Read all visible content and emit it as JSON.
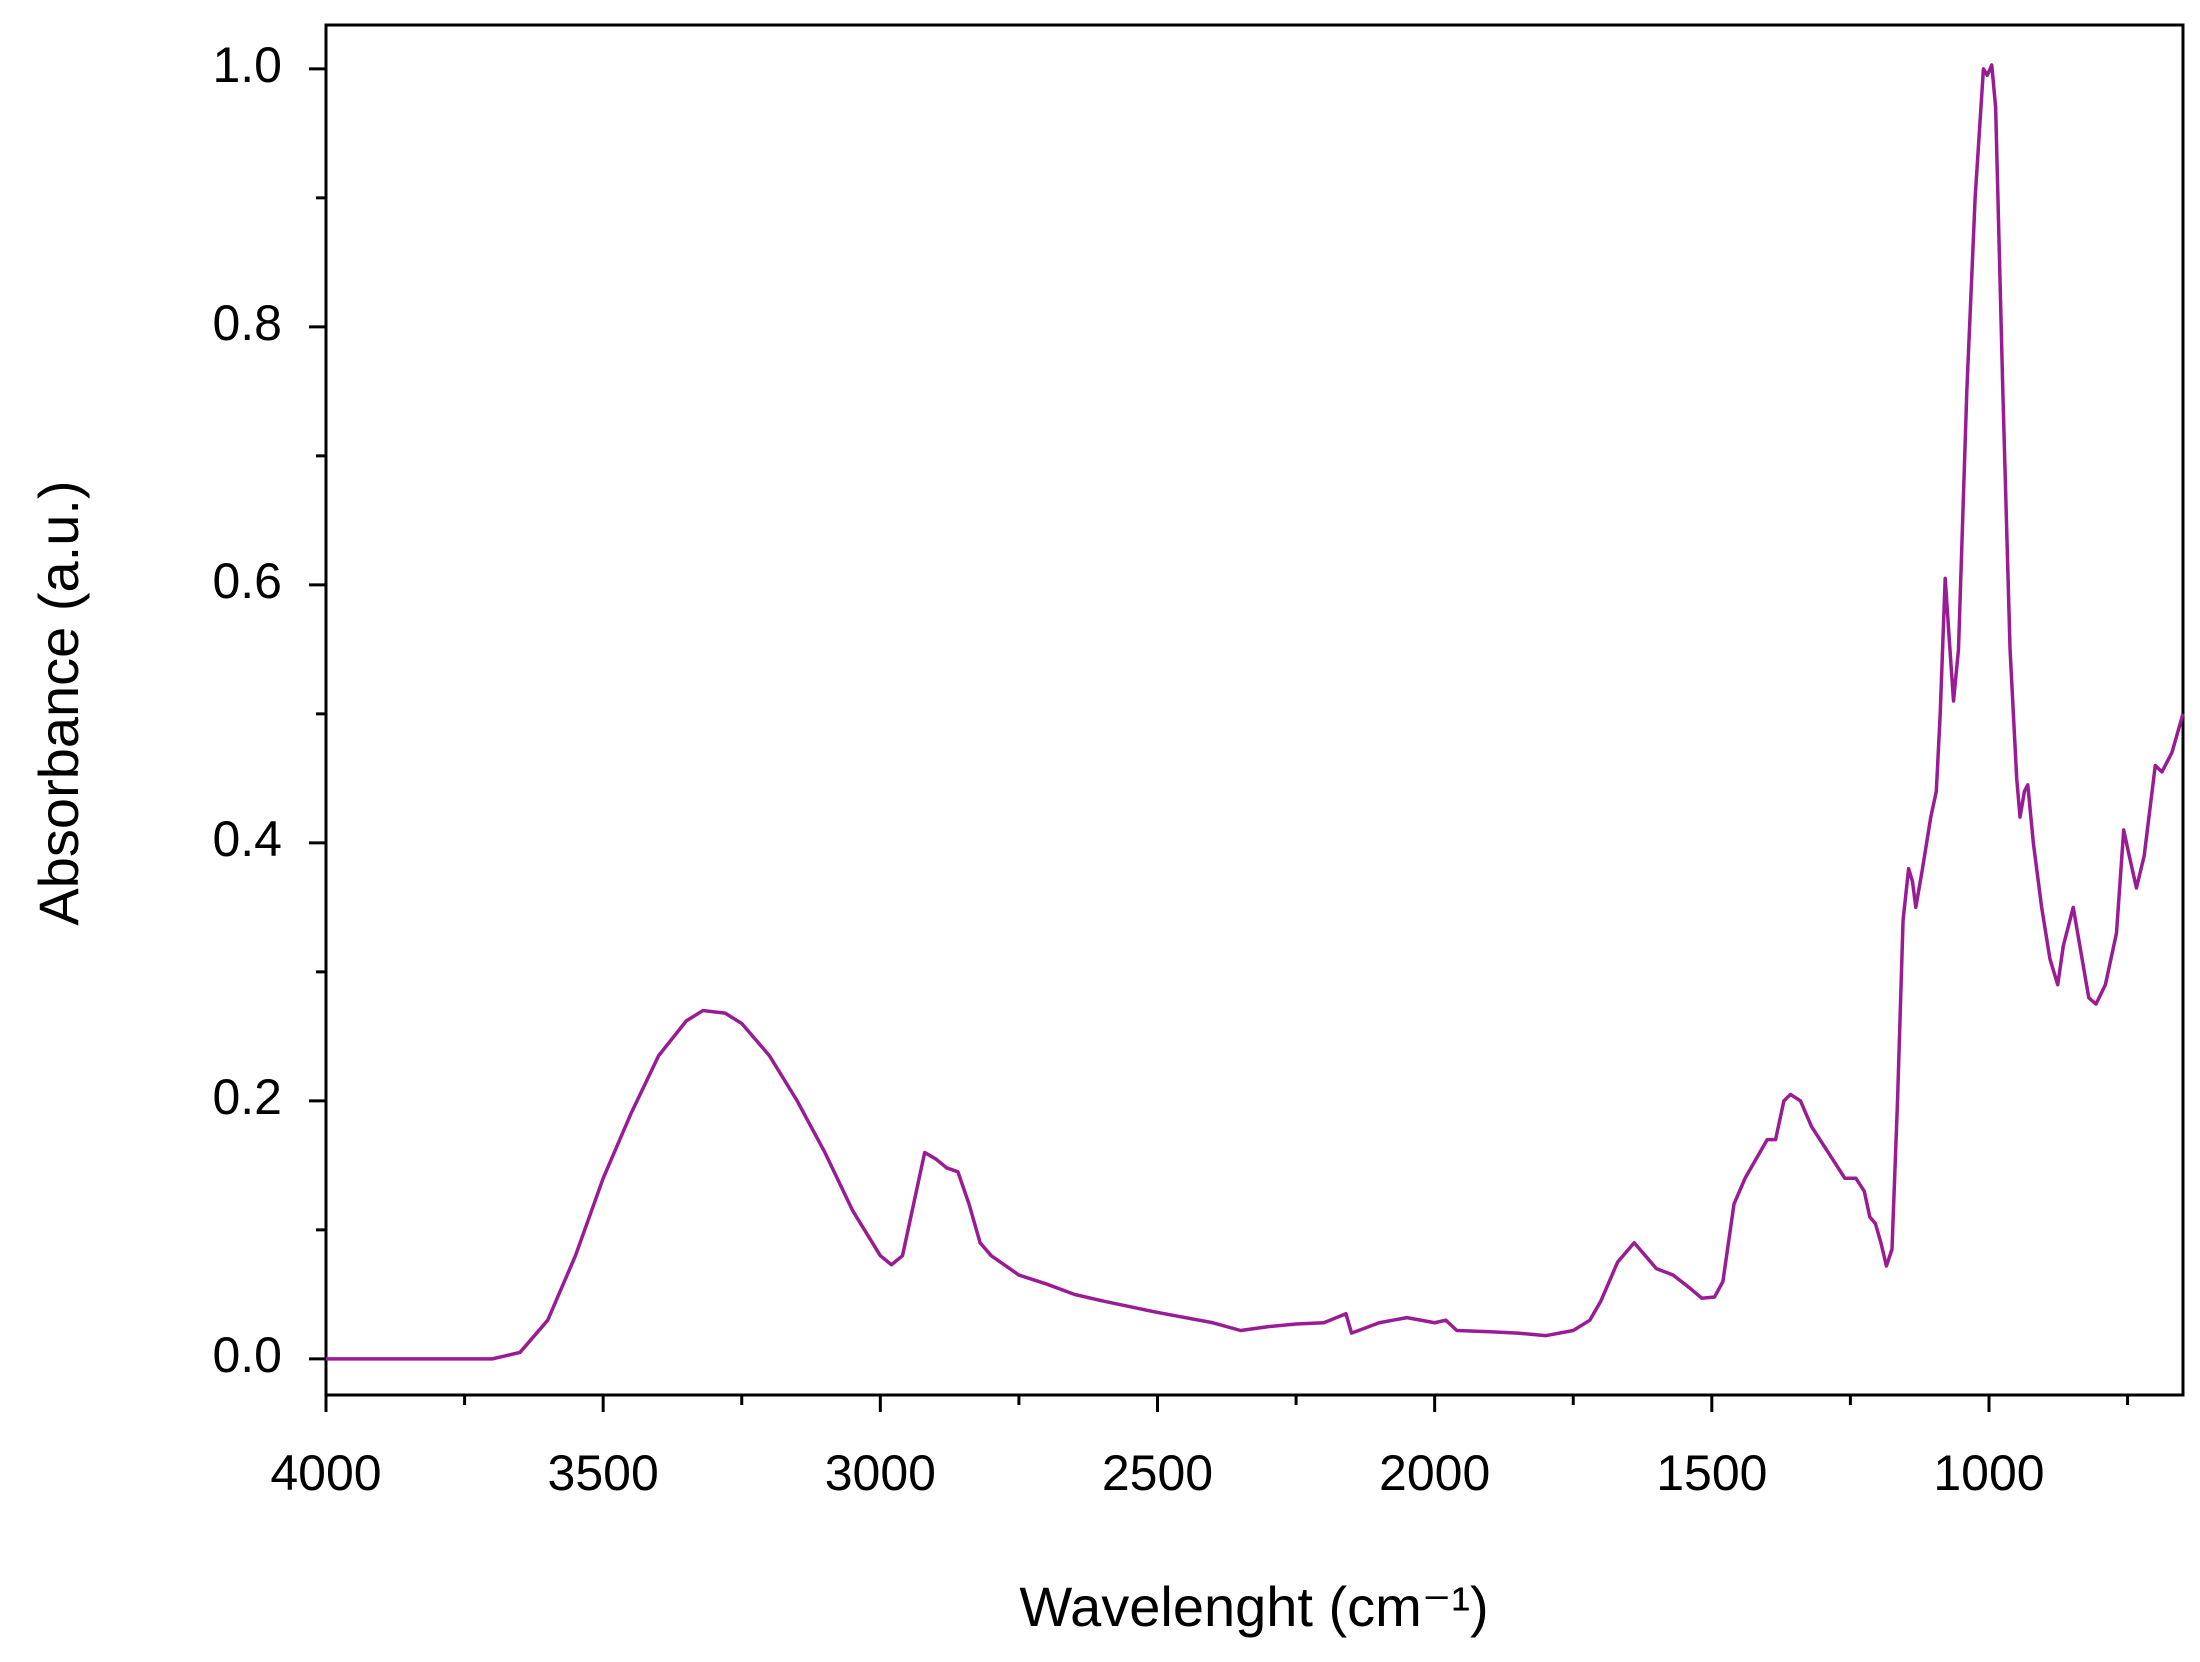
{
  "chart_data": {
    "type": "line",
    "x_label": "Wavelenght (cm⁻¹)",
    "y_label": "Absorbance (a.u.)",
    "color": "#9a1c94",
    "xlim": [
      4000,
      650
    ],
    "ylim": [
      -0.028,
      1.034
    ],
    "xticks": [
      4000,
      3500,
      3000,
      2500,
      2000,
      1500,
      1000
    ],
    "xminorticks": [
      3750,
      3250,
      2750,
      2250,
      1750,
      1250,
      750
    ],
    "yticks": [
      {
        "value": 0,
        "label": "0.0"
      },
      0.2,
      0.4,
      0.6,
      0.8,
      {
        "value": 1,
        "label": "1.0"
      }
    ],
    "yminorticks": [
      0.1,
      0.3,
      0.5,
      0.7,
      0.9
    ],
    "x": [
      4000,
      3800,
      3700,
      3650,
      3600,
      3550,
      3500,
      3450,
      3400,
      3350,
      3320,
      3280,
      3250,
      3200,
      3150,
      3100,
      3050,
      3000,
      2980,
      2960,
      2940,
      2920,
      2900,
      2880,
      2860,
      2840,
      2820,
      2800,
      2750,
      2700,
      2650,
      2600,
      2500,
      2400,
      2350,
      2300,
      2250,
      2200,
      2160,
      2150,
      2100,
      2050,
      2000,
      1980,
      1960,
      1900,
      1850,
      1800,
      1750,
      1720,
      1700,
      1670,
      1640,
      1620,
      1600,
      1570,
      1540,
      1518,
      1495,
      1480,
      1460,
      1440,
      1420,
      1400,
      1385,
      1370,
      1358,
      1340,
      1320,
      1290,
      1260,
      1240,
      1225,
      1215,
      1205,
      1195,
      1185,
      1175,
      1165,
      1155,
      1145,
      1138,
      1132,
      1120,
      1105,
      1095,
      1088,
      1079,
      1072,
      1064,
      1055,
      1040,
      1025,
      1010,
      1003,
      995,
      988,
      975,
      962,
      950,
      944,
      936,
      930,
      920,
      905,
      890,
      876,
      866,
      848,
      836,
      820,
      807,
      790,
      770,
      757,
      747,
      734,
      720,
      700,
      688,
      670,
      650
    ],
    "values": [
      0.0,
      0.0,
      0.0,
      0.005,
      0.03,
      0.08,
      0.14,
      0.19,
      0.235,
      0.262,
      0.27,
      0.268,
      0.26,
      0.235,
      0.2,
      0.16,
      0.115,
      0.08,
      0.073,
      0.08,
      0.12,
      0.16,
      0.155,
      0.148,
      0.145,
      0.12,
      0.09,
      0.08,
      0.065,
      0.058,
      0.05,
      0.045,
      0.036,
      0.028,
      0.022,
      0.025,
      0.027,
      0.028,
      0.035,
      0.02,
      0.028,
      0.032,
      0.028,
      0.03,
      0.022,
      0.021,
      0.02,
      0.018,
      0.022,
      0.03,
      0.045,
      0.075,
      0.09,
      0.08,
      0.07,
      0.065,
      0.055,
      0.047,
      0.048,
      0.06,
      0.12,
      0.14,
      0.155,
      0.17,
      0.17,
      0.2,
      0.205,
      0.2,
      0.18,
      0.16,
      0.14,
      0.14,
      0.13,
      0.11,
      0.105,
      0.09,
      0.072,
      0.085,
      0.2,
      0.34,
      0.38,
      0.37,
      0.35,
      0.38,
      0.42,
      0.44,
      0.5,
      0.605,
      0.56,
      0.51,
      0.55,
      0.75,
      0.9,
      1.0,
      0.995,
      1.003,
      0.97,
      0.75,
      0.55,
      0.45,
      0.42,
      0.44,
      0.445,
      0.4,
      0.35,
      0.31,
      0.29,
      0.32,
      0.35,
      0.32,
      0.28,
      0.275,
      0.29,
      0.33,
      0.41,
      0.39,
      0.365,
      0.39,
      0.46,
      0.455,
      0.47,
      0.5
    ]
  }
}
